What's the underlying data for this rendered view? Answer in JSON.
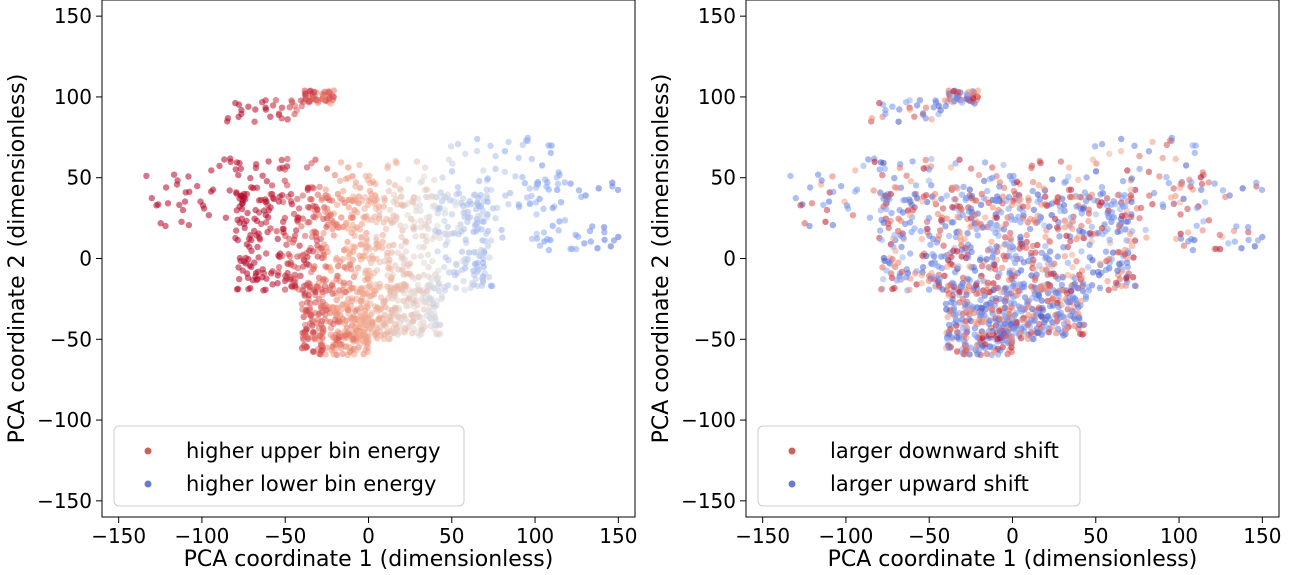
{
  "chart_data": [
    {
      "type": "scatter",
      "title": "",
      "xlabel": "PCA coordinate 1 (dimensionless)",
      "ylabel": "PCA coordinate 2 (dimensionless)",
      "xlim": [
        -160,
        160
      ],
      "ylim": [
        -160,
        160
      ],
      "xticks": [
        -150,
        -100,
        -50,
        0,
        50,
        100,
        150
      ],
      "yticks": [
        -150,
        -100,
        -50,
        0,
        50,
        100,
        150
      ],
      "xtick_labels": [
        "−150",
        "−100",
        "−50",
        "0",
        "50",
        "100",
        "150"
      ],
      "ytick_labels": [
        "−150",
        "−100",
        "−50",
        "0",
        "50",
        "100",
        "150"
      ],
      "grid": false,
      "legend_position": "lower-left",
      "colormap": "coolwarm",
      "color_scheme": "by-x-position",
      "legend": [
        {
          "label": "higher upper bin energy",
          "color": "#c4473f"
        },
        {
          "label": "higher lower bin energy",
          "color": "#4f63c8"
        }
      ]
    },
    {
      "type": "scatter",
      "title": "",
      "xlabel": "PCA coordinate 1 (dimensionless)",
      "ylabel": "PCA coordinate 2 (dimensionless)",
      "xlim": [
        -160,
        160
      ],
      "ylim": [
        -160,
        160
      ],
      "xticks": [
        -150,
        -100,
        -50,
        0,
        50,
        100,
        150
      ],
      "yticks": [
        -150,
        -100,
        -50,
        0,
        50,
        100,
        150
      ],
      "xtick_labels": [
        "−150",
        "−100",
        "−50",
        "0",
        "50",
        "100",
        "150"
      ],
      "ytick_labels": [
        "−150",
        "−100",
        "−50",
        "0",
        "50",
        "100",
        "150"
      ],
      "grid": false,
      "legend_position": "lower-left",
      "colormap": "coolwarm",
      "color_scheme": "mixed",
      "legend": [
        {
          "label": "larger downward shift",
          "color": "#c4473f"
        },
        {
          "label": "larger upward shift",
          "color": "#4f63c8"
        }
      ]
    }
  ],
  "point_clusters": [
    {
      "x": [
        -40,
        -20
      ],
      "y": [
        96,
        104
      ],
      "n": 45
    },
    {
      "x": [
        -85,
        -40
      ],
      "y": [
        84,
        100
      ],
      "n": 30
    },
    {
      "x": [
        -135,
        -85
      ],
      "y": [
        20,
        55
      ],
      "n": 28
    },
    {
      "x": [
        -90,
        40
      ],
      "y": [
        55,
        62
      ],
      "n": 30
    },
    {
      "x": [
        -85,
        50
      ],
      "y": [
        35,
        52
      ],
      "n": 70
    },
    {
      "x": [
        45,
        115
      ],
      "y": [
        10,
        75
      ],
      "n": 70
    },
    {
      "x": [
        95,
        150
      ],
      "y": [
        5,
        48
      ],
      "n": 45
    },
    {
      "x": [
        -80,
        75
      ],
      "y": [
        -20,
        40
      ],
      "n": 650
    },
    {
      "x": [
        -40,
        45
      ],
      "y": [
        -48,
        -15
      ],
      "n": 330
    },
    {
      "x": [
        -40,
        0
      ],
      "y": [
        -60,
        -45
      ],
      "n": 110
    },
    {
      "x": [
        -10,
        20
      ],
      "y": [
        -50,
        -30
      ],
      "n": 60
    }
  ]
}
